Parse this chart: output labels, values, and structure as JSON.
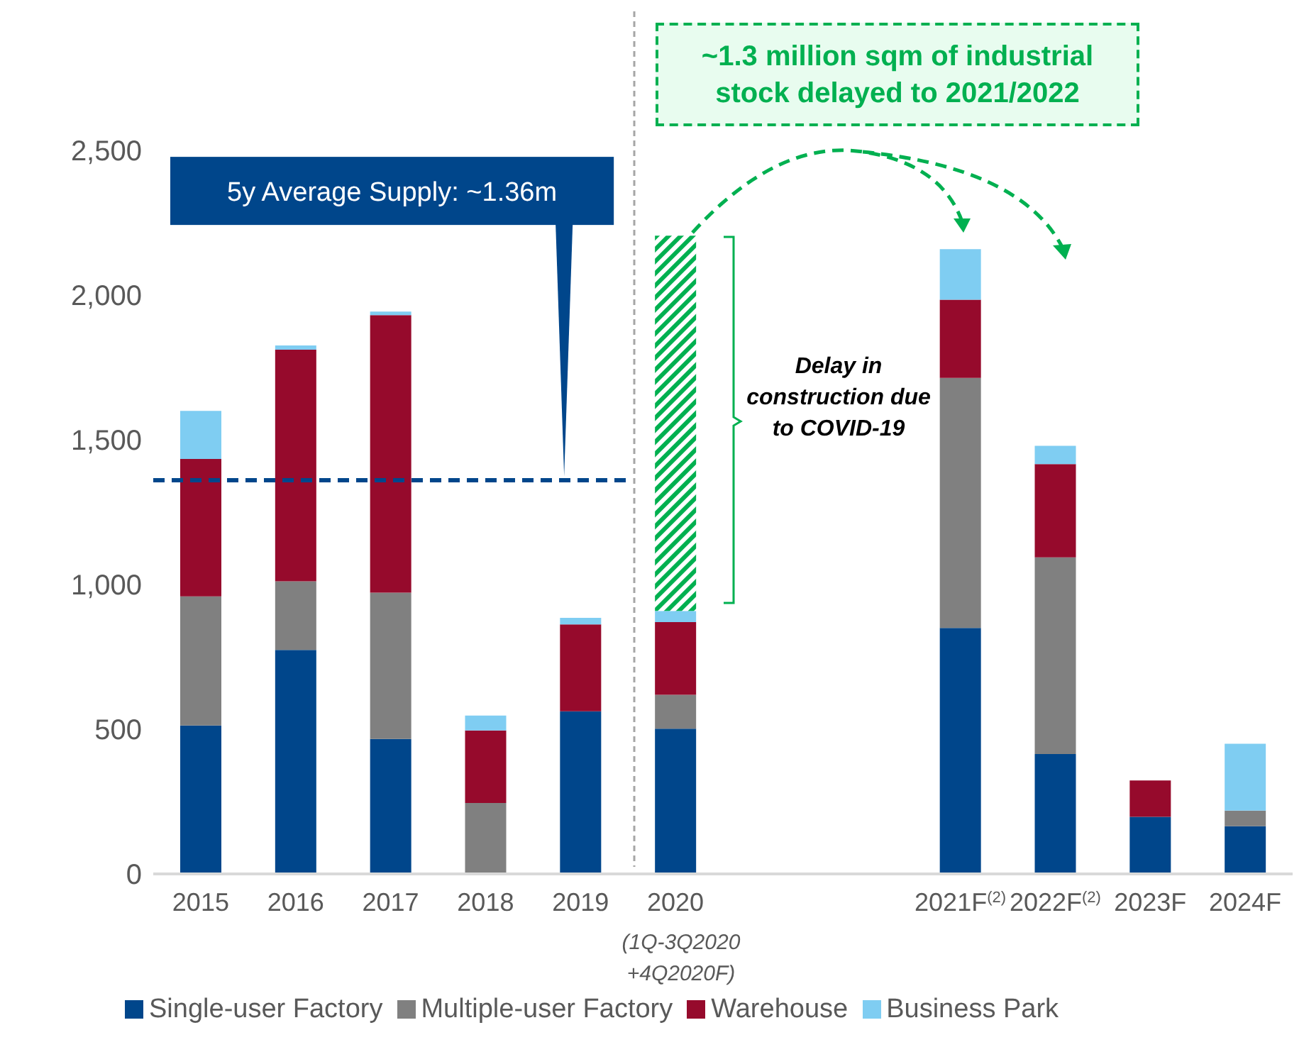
{
  "chart_data": {
    "type": "bar",
    "stacked": true,
    "categories": [
      "2015",
      "2016",
      "2017",
      "2018",
      "2019",
      "2020",
      null,
      null,
      "2021F$^{(2)}$",
      "2022F$^{(2)}$",
      "2023F",
      "2024F"
    ],
    "series": [
      {
        "name": "Single-user Factory",
        "color": "#00468b",
        "values": [
          513,
          774,
          466,
          0,
          562,
          502,
          null,
          null,
          850,
          414,
          197,
          165
        ]
      },
      {
        "name": "Multiple-user Factory",
        "color": "#808080",
        "values": [
          446,
          237,
          506,
          245,
          0,
          117,
          null,
          null,
          864,
          680,
          0,
          54
        ]
      },
      {
        "name": "Warehouse",
        "color": "#960a2c",
        "values": [
          475,
          800,
          959,
          251,
          300,
          251,
          null,
          null,
          270,
          322,
          126,
          0
        ]
      },
      {
        "name": "Business Park",
        "color": "#7fcdf2",
        "values": [
          166,
          15,
          12,
          51,
          23,
          39,
          null,
          null,
          175,
          63,
          0,
          231
        ]
      },
      {
        "color": "#00b050",
        "values": [
          null,
          null,
          null,
          null,
          null,
          1296,
          null,
          null,
          null,
          null,
          null,
          null
        ]
      }
    ],
    "ylim": [
      0,
      2500
    ],
    "yticks": [
      0,
      500,
      {
        "value": 1000,
        "label": "1,000"
      },
      {
        "value": 1500,
        "label": "1,500"
      },
      {
        "value": 2000,
        "label": "2,000"
      },
      {
        "value": 2500,
        "label": "2,500"
      }
    ],
    "ref_lines": [
      {
        "axis": "y",
        "value": 1360,
        "label": "5y Average Supply: ~1.36m",
        "color": "#00468b",
        "line_style": "dashed"
      }
    ],
    "annotations": [
      "~1.3 million sqm of industrial stock delayed to 2021/2022",
      "Delay in construction due to COVID-19",
      "(1Q-3Q2020 +4Q2020F)"
    ],
    "legend": "bottom",
    "grid": false
  }
}
